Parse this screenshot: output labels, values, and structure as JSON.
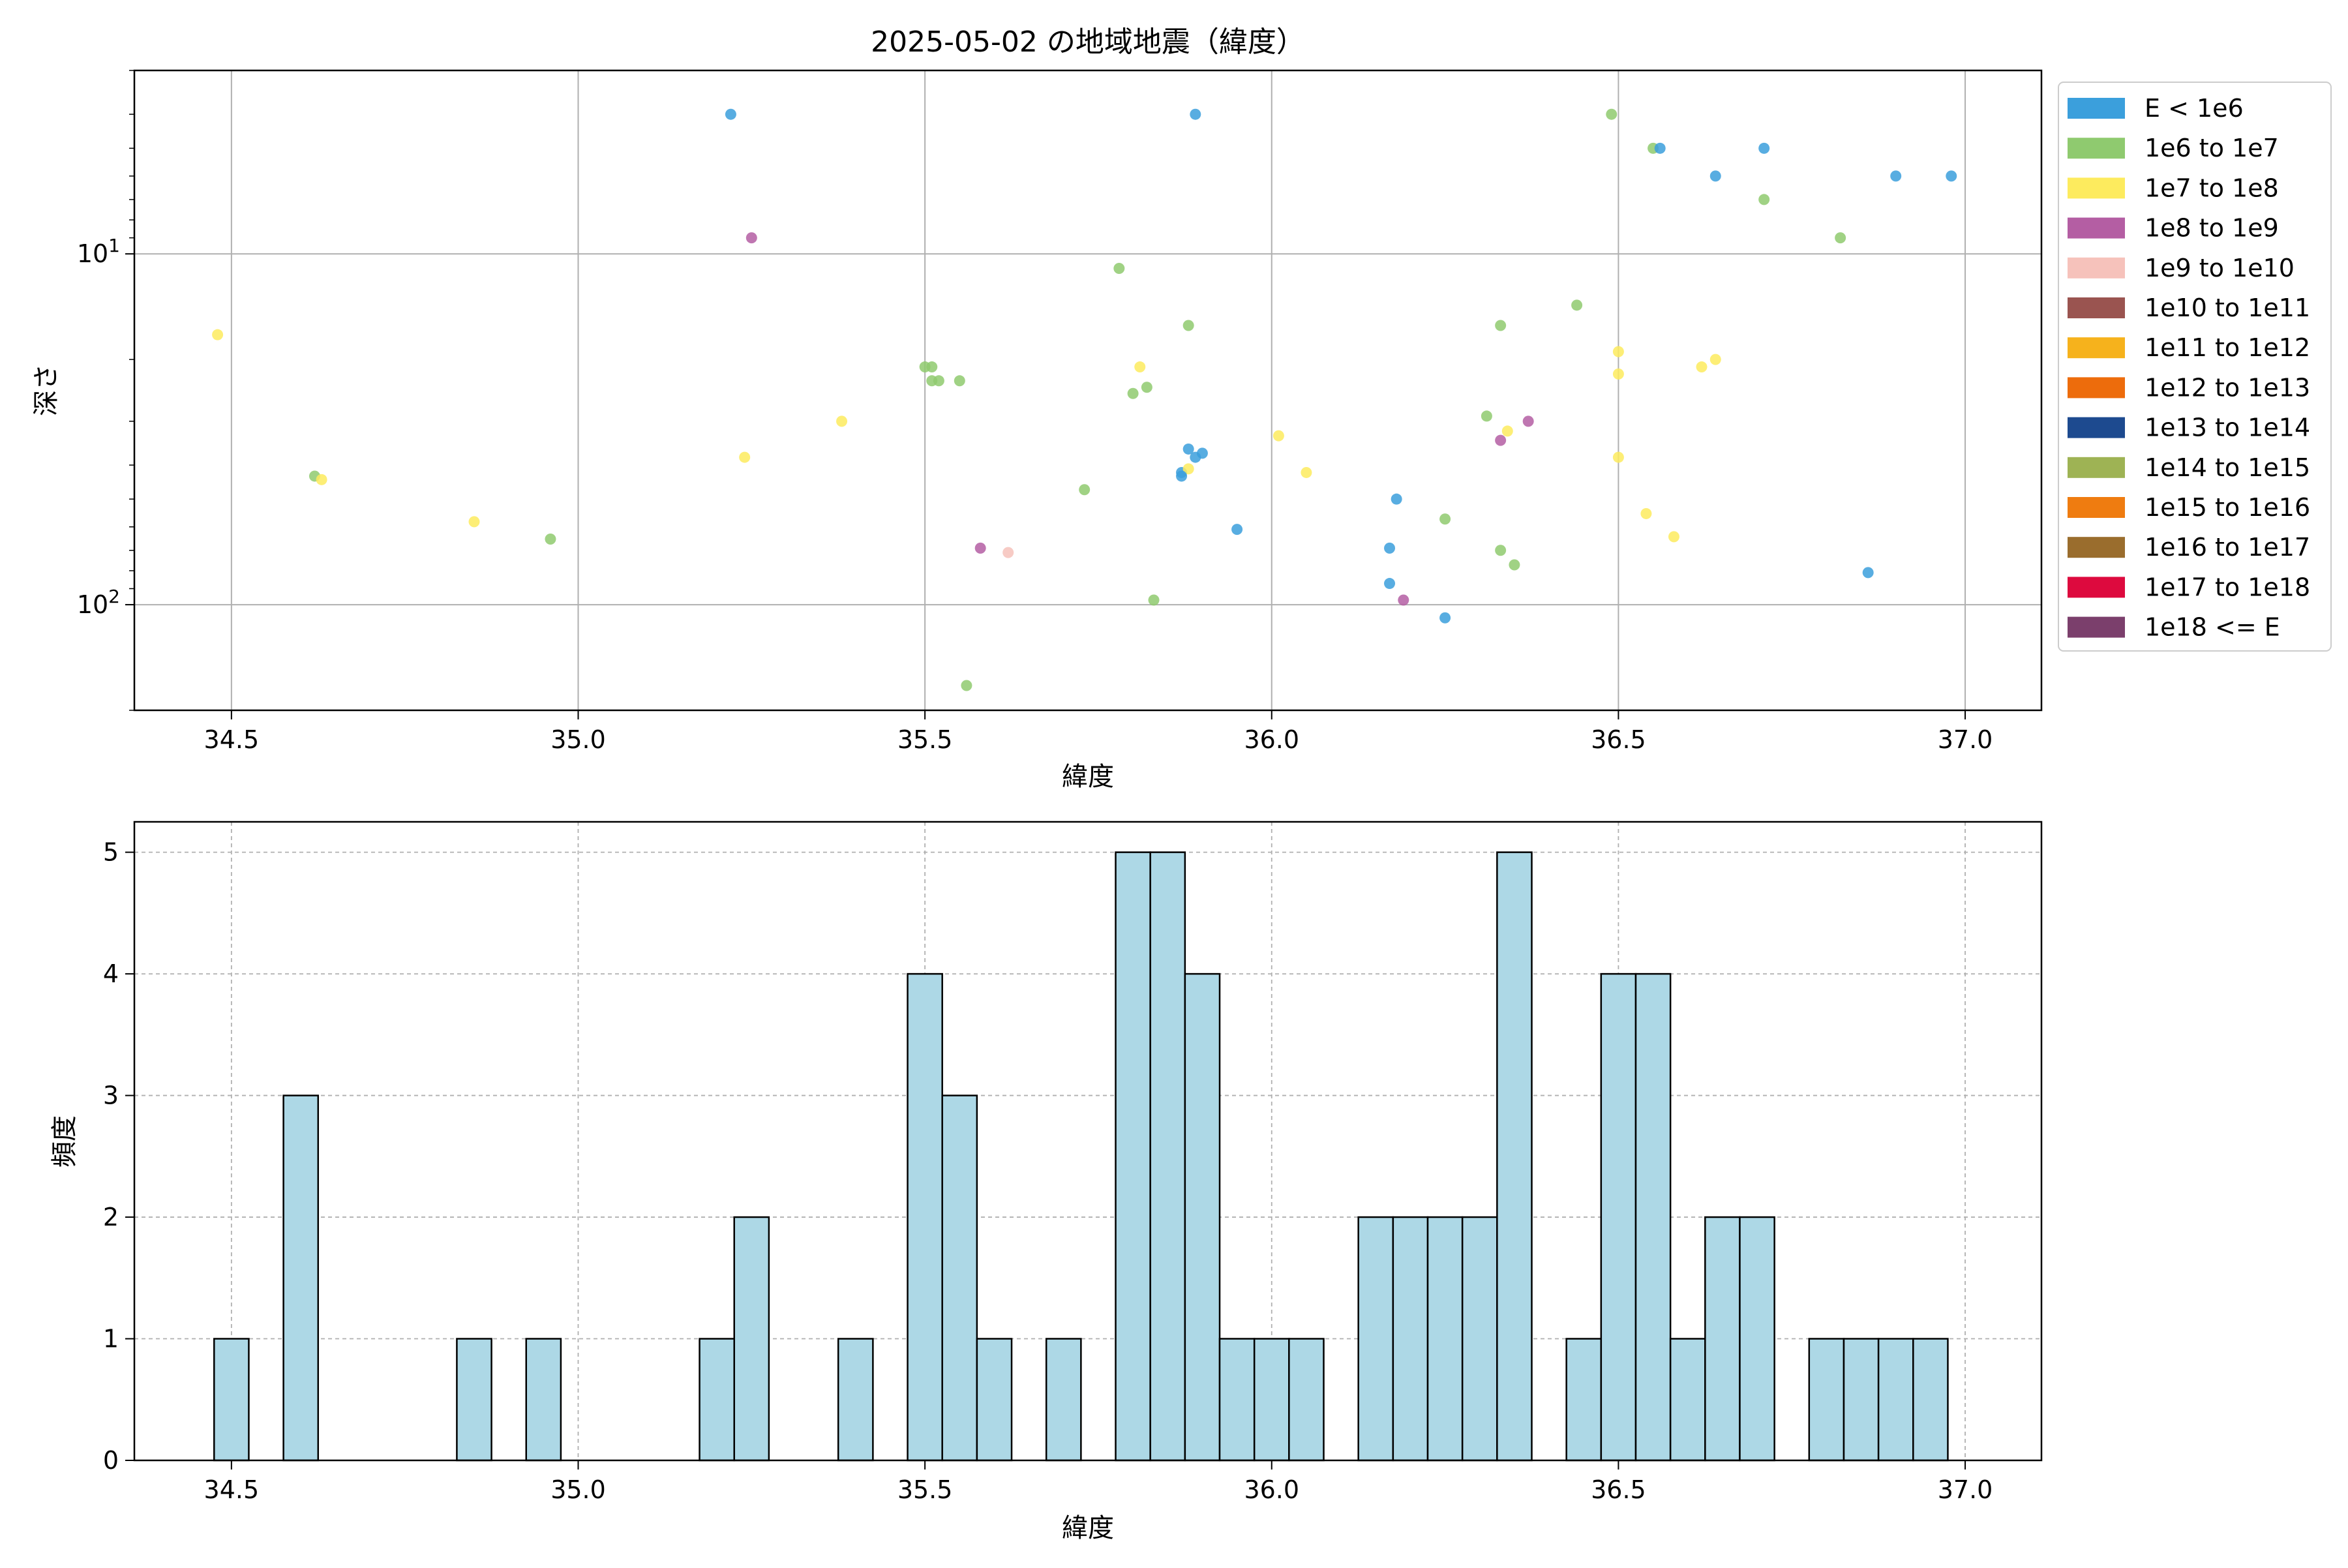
{
  "chart_data": [
    {
      "type": "scatter",
      "title": "2025-05-02 の地域地震（緯度）",
      "xlabel": "緯度",
      "ylabel": "深さ",
      "xlim": [
        34.36,
        37.11
      ],
      "ylim": [
        200,
        3
      ],
      "yscale": "log",
      "y_inverted": true,
      "xticks": [
        "34.5",
        "35.0",
        "35.5",
        "36.0",
        "36.5",
        "37.0"
      ],
      "yticks": [
        {
          "value": 10,
          "label": "10^1"
        },
        {
          "value": 100,
          "label": "10^2"
        }
      ],
      "grid": true,
      "legend_placement": "outside-right",
      "legend": [
        {
          "label": "E < 1e6",
          "color": "#3b9fdc"
        },
        {
          "label": "1e6 to 1e7",
          "color": "#8fca6f"
        },
        {
          "label": "1e7 to 1e8",
          "color": "#fdeb5e"
        },
        {
          "label": "1e8 to 1e9",
          "color": "#b45ea3"
        },
        {
          "label": "1e9 to 1e10",
          "color": "#f6c2bb"
        },
        {
          "label": "1e10 to 1e11",
          "color": "#9a5450"
        },
        {
          "label": "1e11 to 1e12",
          "color": "#f6b21c"
        },
        {
          "label": "1e12 to 1e13",
          "color": "#ed6c0c"
        },
        {
          "label": "1e13 to 1e14",
          "color": "#1d4a8f"
        },
        {
          "label": "1e14 to 1e15",
          "color": "#9eb354"
        },
        {
          "label": "1e15 to 1e16",
          "color": "#ef7c10"
        },
        {
          "label": "1e16 to 1e17",
          "color": "#9a6d2d"
        },
        {
          "label": "1e17 to 1e18",
          "color": "#dd0a3e"
        },
        {
          "label": "1e18 <= E",
          "color": "#7b3f6c"
        }
      ],
      "points": [
        {
          "x": 35.22,
          "y": 4,
          "c": 0
        },
        {
          "x": 35.89,
          "y": 4,
          "c": 0
        },
        {
          "x": 36.49,
          "y": 4,
          "c": 1
        },
        {
          "x": 36.55,
          "y": 5,
          "c": 1
        },
        {
          "x": 36.56,
          "y": 5,
          "c": 0
        },
        {
          "x": 36.71,
          "y": 5,
          "c": 0
        },
        {
          "x": 36.64,
          "y": 6,
          "c": 0
        },
        {
          "x": 36.9,
          "y": 6,
          "c": 0
        },
        {
          "x": 36.98,
          "y": 6,
          "c": 0
        },
        {
          "x": 36.71,
          "y": 7,
          "c": 1
        },
        {
          "x": 35.25,
          "y": 9,
          "c": 3
        },
        {
          "x": 36.82,
          "y": 9,
          "c": 1
        },
        {
          "x": 35.78,
          "y": 11,
          "c": 1
        },
        {
          "x": 36.44,
          "y": 14,
          "c": 1
        },
        {
          "x": 34.48,
          "y": 17,
          "c": 2
        },
        {
          "x": 35.88,
          "y": 16,
          "c": 1
        },
        {
          "x": 36.33,
          "y": 16,
          "c": 1
        },
        {
          "x": 36.5,
          "y": 19,
          "c": 2
        },
        {
          "x": 35.5,
          "y": 21,
          "c": 1
        },
        {
          "x": 35.51,
          "y": 21,
          "c": 1
        },
        {
          "x": 35.81,
          "y": 21,
          "c": 2
        },
        {
          "x": 36.62,
          "y": 21,
          "c": 2
        },
        {
          "x": 36.64,
          "y": 20,
          "c": 2
        },
        {
          "x": 36.5,
          "y": 22,
          "c": 2
        },
        {
          "x": 35.51,
          "y": 23,
          "c": 1
        },
        {
          "x": 35.52,
          "y": 23,
          "c": 1
        },
        {
          "x": 35.55,
          "y": 23,
          "c": 1
        },
        {
          "x": 35.82,
          "y": 24,
          "c": 1
        },
        {
          "x": 35.8,
          "y": 25,
          "c": 1
        },
        {
          "x": 35.38,
          "y": 30,
          "c": 2
        },
        {
          "x": 36.31,
          "y": 29,
          "c": 1
        },
        {
          "x": 36.37,
          "y": 30,
          "c": 3
        },
        {
          "x": 36.34,
          "y": 32,
          "c": 2
        },
        {
          "x": 36.33,
          "y": 34,
          "c": 3
        },
        {
          "x": 36.01,
          "y": 33,
          "c": 2
        },
        {
          "x": 35.88,
          "y": 36,
          "c": 0
        },
        {
          "x": 35.9,
          "y": 37,
          "c": 0
        },
        {
          "x": 35.89,
          "y": 38,
          "c": 0
        },
        {
          "x": 35.24,
          "y": 38,
          "c": 2
        },
        {
          "x": 36.5,
          "y": 38,
          "c": 2
        },
        {
          "x": 34.62,
          "y": 43,
          "c": 1
        },
        {
          "x": 34.63,
          "y": 44,
          "c": 2
        },
        {
          "x": 35.87,
          "y": 42,
          "c": 0
        },
        {
          "x": 35.88,
          "y": 41,
          "c": 2
        },
        {
          "x": 35.87,
          "y": 43,
          "c": 0
        },
        {
          "x": 36.05,
          "y": 42,
          "c": 2
        },
        {
          "x": 35.73,
          "y": 47,
          "c": 1
        },
        {
          "x": 36.18,
          "y": 50,
          "c": 0
        },
        {
          "x": 34.85,
          "y": 58,
          "c": 2
        },
        {
          "x": 36.25,
          "y": 57,
          "c": 1
        },
        {
          "x": 36.54,
          "y": 55,
          "c": 2
        },
        {
          "x": 35.95,
          "y": 61,
          "c": 0
        },
        {
          "x": 34.96,
          "y": 65,
          "c": 1
        },
        {
          "x": 36.58,
          "y": 64,
          "c": 2
        },
        {
          "x": 35.58,
          "y": 69,
          "c": 3
        },
        {
          "x": 35.62,
          "y": 71,
          "c": 4
        },
        {
          "x": 36.17,
          "y": 69,
          "c": 0
        },
        {
          "x": 36.33,
          "y": 70,
          "c": 1
        },
        {
          "x": 36.35,
          "y": 77,
          "c": 1
        },
        {
          "x": 36.86,
          "y": 81,
          "c": 0
        },
        {
          "x": 36.17,
          "y": 87,
          "c": 0
        },
        {
          "x": 35.83,
          "y": 97,
          "c": 1
        },
        {
          "x": 36.19,
          "y": 97,
          "c": 3
        },
        {
          "x": 36.25,
          "y": 109,
          "c": 0
        },
        {
          "x": 35.56,
          "y": 170,
          "c": 1
        }
      ]
    },
    {
      "type": "bar",
      "subtype": "histogram",
      "xlabel": "緯度",
      "ylabel": "頻度",
      "xlim": [
        34.36,
        37.11
      ],
      "ylim": [
        0,
        5.25
      ],
      "xticks": [
        "34.5",
        "35.0",
        "35.5",
        "36.0",
        "36.5",
        "37.0"
      ],
      "yticks": [
        "0",
        "1",
        "2",
        "3",
        "4",
        "5"
      ],
      "grid": true,
      "bar_color": "#add8e6",
      "bin_start": 34.475,
      "bin_width": 0.05,
      "values": [
        1,
        0,
        3,
        0,
        0,
        0,
        0,
        1,
        0,
        1,
        0,
        0,
        0,
        0,
        1,
        2,
        0,
        0,
        1,
        0,
        4,
        3,
        1,
        0,
        1,
        0,
        5,
        5,
        4,
        1,
        1,
        1,
        0,
        2,
        2,
        2,
        2,
        5,
        0,
        1,
        4,
        4,
        1,
        2,
        2,
        0,
        1,
        1,
        1,
        1
      ]
    }
  ]
}
